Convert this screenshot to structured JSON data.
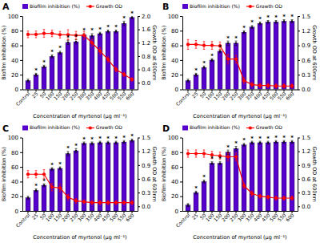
{
  "chart_data": [
    {
      "type": "bar",
      "title": "A",
      "categories": [
        "Control",
        "25",
        "50",
        "100",
        "150",
        "200",
        "250",
        "300",
        "350",
        "400",
        "450",
        "500",
        "550",
        "600"
      ],
      "xlabel": "Concentration of myrtenol (μg ml⁻¹)",
      "ylabel": "Biofilm inhibition (%)",
      "y2label": "Growth OD at 600nm",
      "series": [
        {
          "name": "Biofilm inhibition (%)",
          "type": "bar",
          "color": "#5500CC",
          "values": [
            12,
            20,
            31,
            45,
            50,
            64,
            65,
            74,
            73,
            76,
            79,
            79,
            90,
            98
          ],
          "errors": [
            2,
            2,
            2,
            2,
            2,
            3,
            3,
            2,
            3,
            2,
            2,
            2,
            3,
            2
          ]
        },
        {
          "name": "Growth OD",
          "type": "line",
          "axis": "y2",
          "color": "#FF0000",
          "marker": "circle",
          "values": [
            1.45,
            1.45,
            1.48,
            1.48,
            1.44,
            1.44,
            1.42,
            1.42,
            1.2,
            0.95,
            0.7,
            0.4,
            0.25,
            0.1
          ],
          "errors": [
            0.1,
            0.1,
            0.12,
            0.1,
            0.1,
            0.15,
            0.12,
            0.12,
            0.1,
            0.1,
            0.08,
            0.07,
            0.06,
            0.05
          ]
        }
      ],
      "ylim": [
        0,
        100
      ],
      "yticks": [
        0,
        20,
        40,
        60,
        80,
        100
      ],
      "y2lim": [
        -0.2,
        2.0
      ],
      "y2ticks": [
        {
          "value": 0.0,
          "label": "0.0"
        },
        0.4,
        0.8,
        1.2,
        1.6,
        {
          "value": 2.0,
          "label": "2.0"
        }
      ],
      "grid": false,
      "legend": "upper left",
      "annotations": [
        {
          "text": "*",
          "x": "25"
        },
        {
          "text": "*",
          "x": "50"
        },
        {
          "text": "*",
          "x": "100"
        },
        {
          "text": "*",
          "x": "150"
        },
        {
          "text": "*",
          "x": "200"
        },
        {
          "text": "*",
          "x": "250"
        },
        {
          "text": "*",
          "x": "300"
        },
        {
          "text": "*",
          "x": "350"
        },
        {
          "text": "*",
          "x": "400"
        },
        {
          "text": "*",
          "x": "450"
        },
        {
          "text": "*",
          "x": "500"
        },
        {
          "text": "*",
          "x": "550"
        },
        {
          "text": "*",
          "x": "600"
        }
      ]
    },
    {
      "type": "bar",
      "title": "B",
      "categories": [
        "Control",
        "25",
        "50",
        "100",
        "150",
        "200",
        "250",
        "300",
        "350",
        "400",
        "450",
        "500",
        "550",
        "600"
      ],
      "xlabel": "Concentration of myrtenol (μg ml⁻¹)",
      "ylabel": "Biofilm inhibition (%)",
      "y2label": "Growth OD at 600nm",
      "series": [
        {
          "name": "Biofilm inhibition (%)",
          "type": "bar",
          "color": "#5500CC",
          "values": [
            12,
            20,
            30,
            40,
            52,
            63,
            63,
            78,
            85,
            90,
            92,
            92,
            93,
            93
          ],
          "errors": [
            2,
            2,
            2,
            2,
            2,
            3,
            3,
            2,
            2,
            2,
            2,
            2,
            2,
            2
          ]
        },
        {
          "name": "Growth OD",
          "type": "line",
          "axis": "y2",
          "color": "#FF0000",
          "marker": "circle",
          "values": [
            0.92,
            0.92,
            0.9,
            0.9,
            0.89,
            0.62,
            0.62,
            0.18,
            0.1,
            0.08,
            0.08,
            0.07,
            0.07,
            0.07
          ],
          "errors": [
            0.1,
            0.08,
            0.08,
            0.08,
            0.08,
            0.1,
            0.08,
            0.06,
            0.04,
            0.04,
            0.04,
            0.04,
            0.04,
            0.04
          ]
        }
      ],
      "ylim": [
        0,
        100
      ],
      "yticks": [
        0,
        20,
        40,
        60,
        80,
        100
      ],
      "y2lim": [
        0.0,
        1.5
      ],
      "y2ticks": [
        {
          "value": 0.0,
          "label": "0.0"
        },
        0.3,
        0.6,
        0.9,
        1.2,
        1.5
      ],
      "grid": false,
      "legend": "upper left",
      "annotations": [
        {
          "text": "*",
          "x": "25"
        },
        {
          "text": "*",
          "x": "50"
        },
        {
          "text": "*",
          "x": "100"
        },
        {
          "text": "*",
          "x": "150"
        },
        {
          "text": "*",
          "x": "200"
        },
        {
          "text": "*",
          "x": "250"
        },
        {
          "text": "*",
          "x": "300"
        },
        {
          "text": "*",
          "x": "350"
        },
        {
          "text": "*",
          "x": "400"
        },
        {
          "text": "*",
          "x": "450"
        },
        {
          "text": "*",
          "x": "500"
        },
        {
          "text": "*",
          "x": "550"
        },
        {
          "text": "*",
          "x": "600"
        }
      ]
    },
    {
      "type": "bar",
      "title": "C",
      "categories": [
        "Control",
        "25",
        "50",
        "100",
        "150",
        "200",
        "250",
        "300",
        "350",
        "400",
        "450",
        "500",
        "550",
        "600"
      ],
      "xlabel": "Concentration of myrtenol (μg ml⁻¹)",
      "ylabel": "Biofilm inhibition (%)",
      "y2label": "Growth OD at 600nm",
      "series": [
        {
          "name": "Biofilm inhibition (%)",
          "type": "bar",
          "color": "#5500CC",
          "values": [
            18,
            28,
            35,
            57,
            58,
            78,
            82,
            92,
            92,
            93,
            93,
            93,
            94,
            96
          ],
          "errors": [
            2,
            2,
            2,
            2,
            2,
            3,
            3,
            2,
            2,
            2,
            2,
            2,
            2,
            2
          ]
        },
        {
          "name": "Growth OD",
          "type": "line",
          "axis": "y2",
          "color": "#FF0000",
          "marker": "circle",
          "values": [
            0.7,
            0.7,
            0.7,
            0.42,
            0.4,
            0.2,
            0.12,
            0.1,
            0.08,
            0.08,
            0.08,
            0.08,
            0.08,
            0.08
          ],
          "errors": [
            0.08,
            0.08,
            0.1,
            0.08,
            0.08,
            0.06,
            0.05,
            0.04,
            0.04,
            0.04,
            0.04,
            0.04,
            0.04,
            0.04
          ]
        }
      ],
      "ylim": [
        0,
        100
      ],
      "yticks": [
        0,
        20,
        40,
        60,
        80,
        100
      ],
      "y2lim": [
        -0.1,
        1.5
      ],
      "y2ticks": [
        {
          "value": 0.0,
          "label": "0.0"
        },
        0.3,
        0.6,
        0.9,
        1.2,
        1.5
      ],
      "grid": false,
      "legend": "upper left",
      "annotations": [
        {
          "text": "*",
          "x": "25"
        },
        {
          "text": "*",
          "x": "50"
        },
        {
          "text": "*",
          "x": "100"
        },
        {
          "text": "*",
          "x": "150"
        },
        {
          "text": "*",
          "x": "200"
        },
        {
          "text": "*",
          "x": "250"
        },
        {
          "text": "*",
          "x": "300"
        },
        {
          "text": "*",
          "x": "350"
        },
        {
          "text": "*",
          "x": "400"
        },
        {
          "text": "*",
          "x": "450"
        },
        {
          "text": "*",
          "x": "500"
        },
        {
          "text": "*",
          "x": "550"
        },
        {
          "text": "*",
          "x": "600"
        }
      ]
    },
    {
      "type": "bar",
      "title": "D",
      "categories": [
        "Control",
        "25",
        "50",
        "100",
        "150",
        "200",
        "250",
        "300",
        "350",
        "400",
        "450",
        "500",
        "550",
        "600"
      ],
      "xlabel": "Concentration of myrtenol (μg ml⁻¹)",
      "ylabel": "Biofilm inhibition (%)",
      "y2label": "Growth OD at 600nm",
      "series": [
        {
          "name": "Biofilm inhibition (%)",
          "type": "bar",
          "color": "#5500CC",
          "values": [
            8,
            25,
            40,
            65,
            65,
            80,
            85,
            90,
            93,
            93,
            93,
            94,
            94,
            94
          ],
          "errors": [
            2,
            2,
            2,
            2,
            2,
            3,
            3,
            2,
            2,
            2,
            2,
            2,
            2,
            2
          ]
        },
        {
          "name": "Growth OD",
          "type": "line",
          "axis": "y2",
          "color": "#FF0000",
          "marker": "circle",
          "values": [
            1.15,
            1.15,
            1.15,
            1.12,
            1.1,
            1.08,
            1.08,
            0.45,
            0.28,
            0.22,
            0.2,
            0.18,
            0.18,
            0.18
          ],
          "errors": [
            0.08,
            0.08,
            0.08,
            0.08,
            0.08,
            0.08,
            0.08,
            0.06,
            0.05,
            0.04,
            0.04,
            0.04,
            0.04,
            0.04
          ]
        }
      ],
      "ylim": [
        0,
        100
      ],
      "yticks": [
        0,
        20,
        40,
        60,
        80,
        100
      ],
      "y2lim": [
        -0.1,
        1.5
      ],
      "y2ticks": [
        {
          "value": 0.0,
          "label": "0.0"
        },
        0.3,
        0.6,
        0.9,
        1.2,
        1.5
      ],
      "grid": false,
      "legend": "upper left",
      "annotations": [
        {
          "text": "*",
          "x": "25"
        },
        {
          "text": "*",
          "x": "50"
        },
        {
          "text": "*",
          "x": "100"
        },
        {
          "text": "*",
          "x": "150"
        },
        {
          "text": "*",
          "x": "200"
        },
        {
          "text": "*",
          "x": "250"
        },
        {
          "text": "*",
          "x": "300"
        },
        {
          "text": "*",
          "x": "350"
        },
        {
          "text": "*",
          "x": "400"
        },
        {
          "text": "*",
          "x": "450"
        },
        {
          "text": "*",
          "x": "500"
        },
        {
          "text": "*",
          "x": "550"
        },
        {
          "text": "*",
          "x": "600"
        }
      ]
    }
  ]
}
